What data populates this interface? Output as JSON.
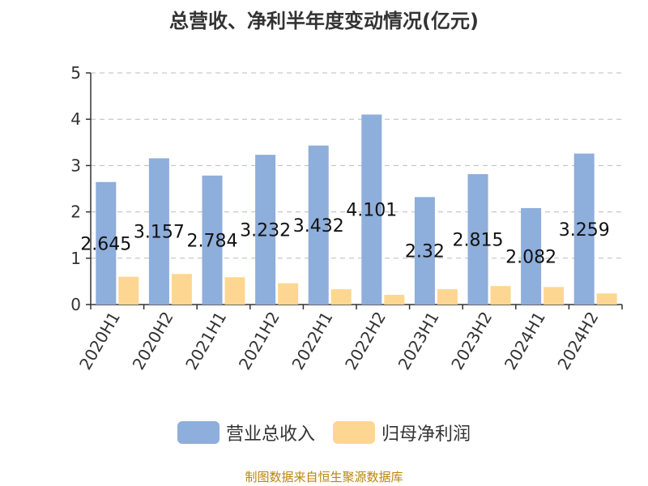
{
  "title": "总营收、净利半年度变动情况(亿元)",
  "source": "制图数据来自恒生聚源数据库",
  "colors": {
    "revenue": "#8eaedb",
    "profit": "#fdd791",
    "grid": "#bbbbbb",
    "axis": "#333333",
    "text": "#333333",
    "source": "#b8860b"
  },
  "chart_data": {
    "type": "bar",
    "title": "总营收、净利半年度变动情况(亿元)",
    "categories": [
      "2020H1",
      "2020H2",
      "2021H1",
      "2021H2",
      "2022H1",
      "2022H2",
      "2023H1",
      "2023H2",
      "2024H1",
      "2024H2"
    ],
    "series": [
      {
        "name": "营业总收入",
        "values": [
          2.645,
          3.157,
          2.784,
          3.232,
          3.432,
          4.101,
          2.32,
          2.815,
          2.082,
          3.259
        ],
        "labels": [
          "2.645",
          "3.157",
          "2.784",
          "3.232",
          "3.432",
          "4.101",
          "2.32",
          "2.815",
          "2.082",
          "3.259"
        ]
      },
      {
        "name": "归母净利润",
        "values": [
          0.6,
          0.66,
          0.59,
          0.46,
          0.33,
          0.21,
          0.33,
          0.4,
          0.38,
          0.24
        ]
      }
    ],
    "ylim": [
      0,
      5
    ],
    "yticks": [
      "0",
      "1",
      "2",
      "3",
      "4",
      "5"
    ],
    "grid": true,
    "legend_position": "bottom-center"
  }
}
